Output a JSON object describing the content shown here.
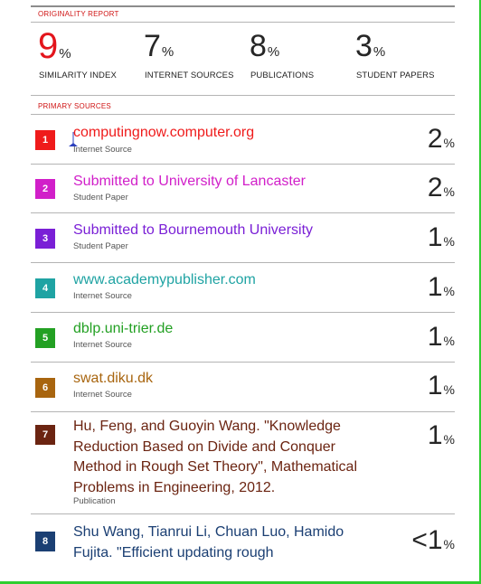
{
  "report": {
    "heading": "ORIGINALITY REPORT",
    "primary_heading": "PRIMARY SOURCES",
    "stats": [
      {
        "value": "9",
        "unit": "%",
        "label": "SIMILARITY INDEX"
      },
      {
        "value": "7",
        "unit": "%",
        "label": "INTERNET SOURCES"
      },
      {
        "value": "8",
        "unit": "%",
        "label": "PUBLICATIONS"
      },
      {
        "value": "3",
        "unit": "%",
        "label": "STUDENT PAPERS"
      }
    ]
  },
  "sources": [
    {
      "rank": "1",
      "title": "computingnow.computer.org",
      "type": "Internet Source",
      "percent": "2",
      "unit": "%",
      "color": "#ef1b1b"
    },
    {
      "rank": "2",
      "title": "Submitted to University of Lancaster",
      "type": "Student Paper",
      "percent": "2",
      "unit": "%",
      "color": "#d11fc9"
    },
    {
      "rank": "3",
      "title": "Submitted to Bournemouth University",
      "type": "Student Paper",
      "percent": "1",
      "unit": "%",
      "color": "#7a1fd6"
    },
    {
      "rank": "4",
      "title": "www.academypublisher.com",
      "type": "Internet Source",
      "percent": "1",
      "unit": "%",
      "color": "#1fa3a3"
    },
    {
      "rank": "5",
      "title": "dblp.uni-trier.de",
      "type": "Internet Source",
      "percent": "1",
      "unit": "%",
      "color": "#23a023"
    },
    {
      "rank": "6",
      "title": "swat.diku.dk",
      "type": "Internet Source",
      "percent": "1",
      "unit": "%",
      "color": "#a8650f"
    },
    {
      "rank": "7",
      "title": "Hu, Feng, and Guoyin Wang. \"Knowledge Reduction Based on Divide and Conquer Method in Rough Set Theory\", Mathematical Problems in Engineering, 2012.",
      "type": "Publication",
      "percent": "1",
      "unit": "%",
      "color": "#6b2411"
    },
    {
      "rank": "8",
      "title": "Shu Wang, Tianrui Li, Chuan Luo, Hamido Fujita. \"Efficient updating rough",
      "type": "",
      "percent": "<1",
      "unit": "%",
      "color": "#1b3f73"
    }
  ]
}
